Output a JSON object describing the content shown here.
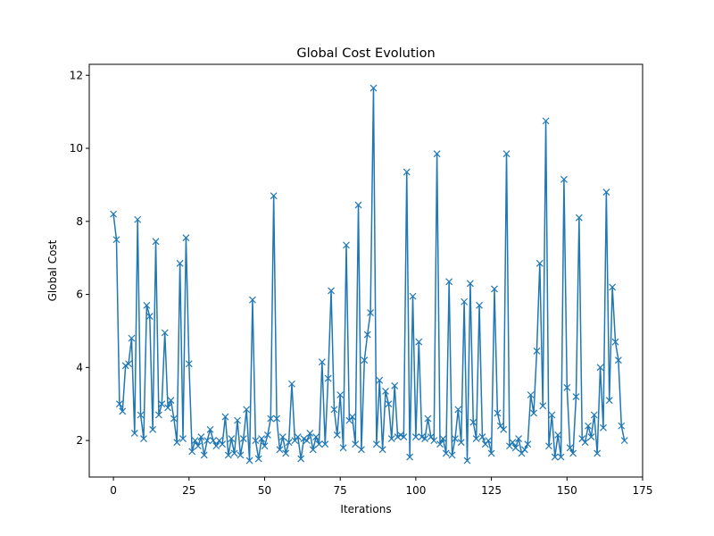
{
  "chart_data": {
    "type": "line",
    "title": "Global Cost Evolution",
    "xlabel": "Iterations",
    "ylabel": "Global Cost",
    "xlim": [
      -8,
      175
    ],
    "ylim": [
      1.0,
      12.3
    ],
    "xticks": [
      0,
      25,
      50,
      75,
      100,
      125,
      150,
      175
    ],
    "yticks": [
      2,
      4,
      6,
      8,
      10,
      12
    ],
    "grid": false,
    "legend": "none",
    "marker": "x",
    "color": "#1f77b4",
    "series": [
      {
        "values": [
          8.2,
          7.5,
          3.0,
          2.8,
          4.05,
          4.1,
          4.8,
          2.2,
          8.05,
          2.7,
          2.05,
          5.7,
          5.4,
          2.3,
          7.45,
          2.7,
          3.0,
          4.95,
          2.9,
          3.1,
          2.6,
          1.95,
          6.85,
          2.05,
          7.55,
          4.1,
          1.7,
          2.0,
          1.85,
          2.1,
          1.6,
          2.0,
          2.3,
          2.0,
          1.85,
          2.0,
          1.9,
          2.65,
          1.6,
          2.05,
          1.65,
          2.55,
          1.6,
          2.05,
          2.85,
          1.45,
          5.85,
          2.0,
          1.5,
          2.05,
          1.85,
          2.15,
          2.6,
          8.7,
          2.6,
          1.75,
          2.1,
          1.65,
          1.95,
          3.55,
          2.0,
          2.1,
          1.5,
          2.05,
          2.0,
          2.2,
          1.75,
          2.1,
          1.9,
          4.15,
          1.9,
          3.7,
          6.1,
          2.85,
          2.15,
          3.25,
          1.8,
          7.35,
          2.55,
          2.65,
          1.9,
          8.45,
          1.75,
          4.2,
          4.9,
          5.5,
          11.65,
          1.9,
          3.65,
          1.75,
          3.35,
          3.0,
          2.05,
          3.5,
          2.1,
          2.15,
          2.1,
          9.35,
          1.55,
          5.95,
          2.1,
          4.7,
          2.1,
          2.05,
          2.6,
          2.1,
          2.0,
          9.85,
          1.9,
          2.05,
          1.65,
          6.35,
          1.6,
          2.05,
          2.85,
          1.95,
          5.8,
          1.45,
          6.3,
          2.5,
          2.05,
          5.7,
          2.1,
          1.9,
          2.0,
          1.65,
          6.15,
          2.75,
          2.4,
          2.3,
          9.85,
          1.85,
          1.95,
          1.8,
          2.05,
          1.65,
          1.75,
          1.9,
          3.25,
          2.75,
          4.45,
          6.85,
          2.95,
          10.75,
          1.85,
          2.7,
          1.55,
          2.15,
          1.55,
          9.15,
          3.45,
          1.8,
          1.65,
          3.2,
          8.1,
          2.05,
          1.95,
          2.4,
          2.1,
          2.7,
          1.65,
          4.0,
          2.35,
          8.8,
          3.1,
          6.2,
          4.7,
          4.2,
          2.4,
          2.0
        ]
      }
    ]
  }
}
